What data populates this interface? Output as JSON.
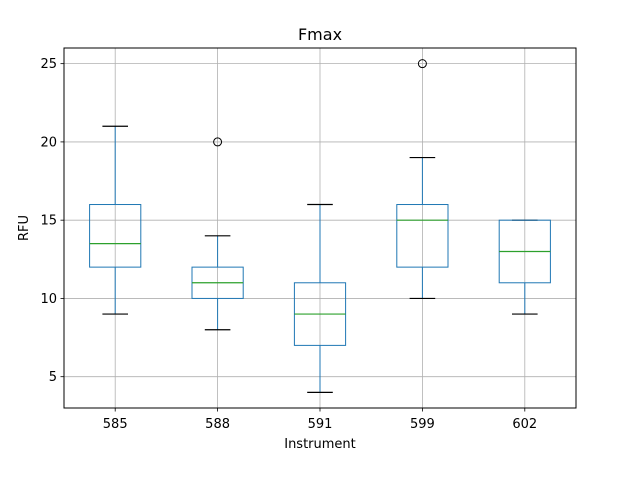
{
  "chart_data": {
    "type": "box",
    "title": "Fmax",
    "xlabel": "Instrument",
    "ylabel": "RFU",
    "ylim": [
      3,
      26
    ],
    "yticks": [
      5,
      10,
      15,
      20,
      25
    ],
    "grid": true,
    "categories": [
      "585",
      "588",
      "591",
      "599",
      "602"
    ],
    "boxes": [
      {
        "whisker_low": 9,
        "q1": 12,
        "median": 13.5,
        "q3": 16,
        "whisker_high": 21,
        "outliers": []
      },
      {
        "whisker_low": 8,
        "q1": 10,
        "median": 11,
        "q3": 12,
        "whisker_high": 14,
        "outliers": [
          20
        ]
      },
      {
        "whisker_low": 4,
        "q1": 7,
        "median": 9,
        "q3": 11,
        "whisker_high": 16,
        "outliers": []
      },
      {
        "whisker_low": 10,
        "q1": 12,
        "median": 15,
        "q3": 16,
        "whisker_high": 19,
        "outliers": [
          25
        ]
      },
      {
        "whisker_low": 9,
        "q1": 11,
        "median": 13,
        "q3": 15,
        "whisker_high": 15,
        "outliers": []
      }
    ],
    "colors": {
      "box": "#1f77b4",
      "median": "#2ca02c",
      "whisker_cap": "#000000",
      "grid": "#b0b0b0",
      "outlier": "#000000"
    }
  }
}
